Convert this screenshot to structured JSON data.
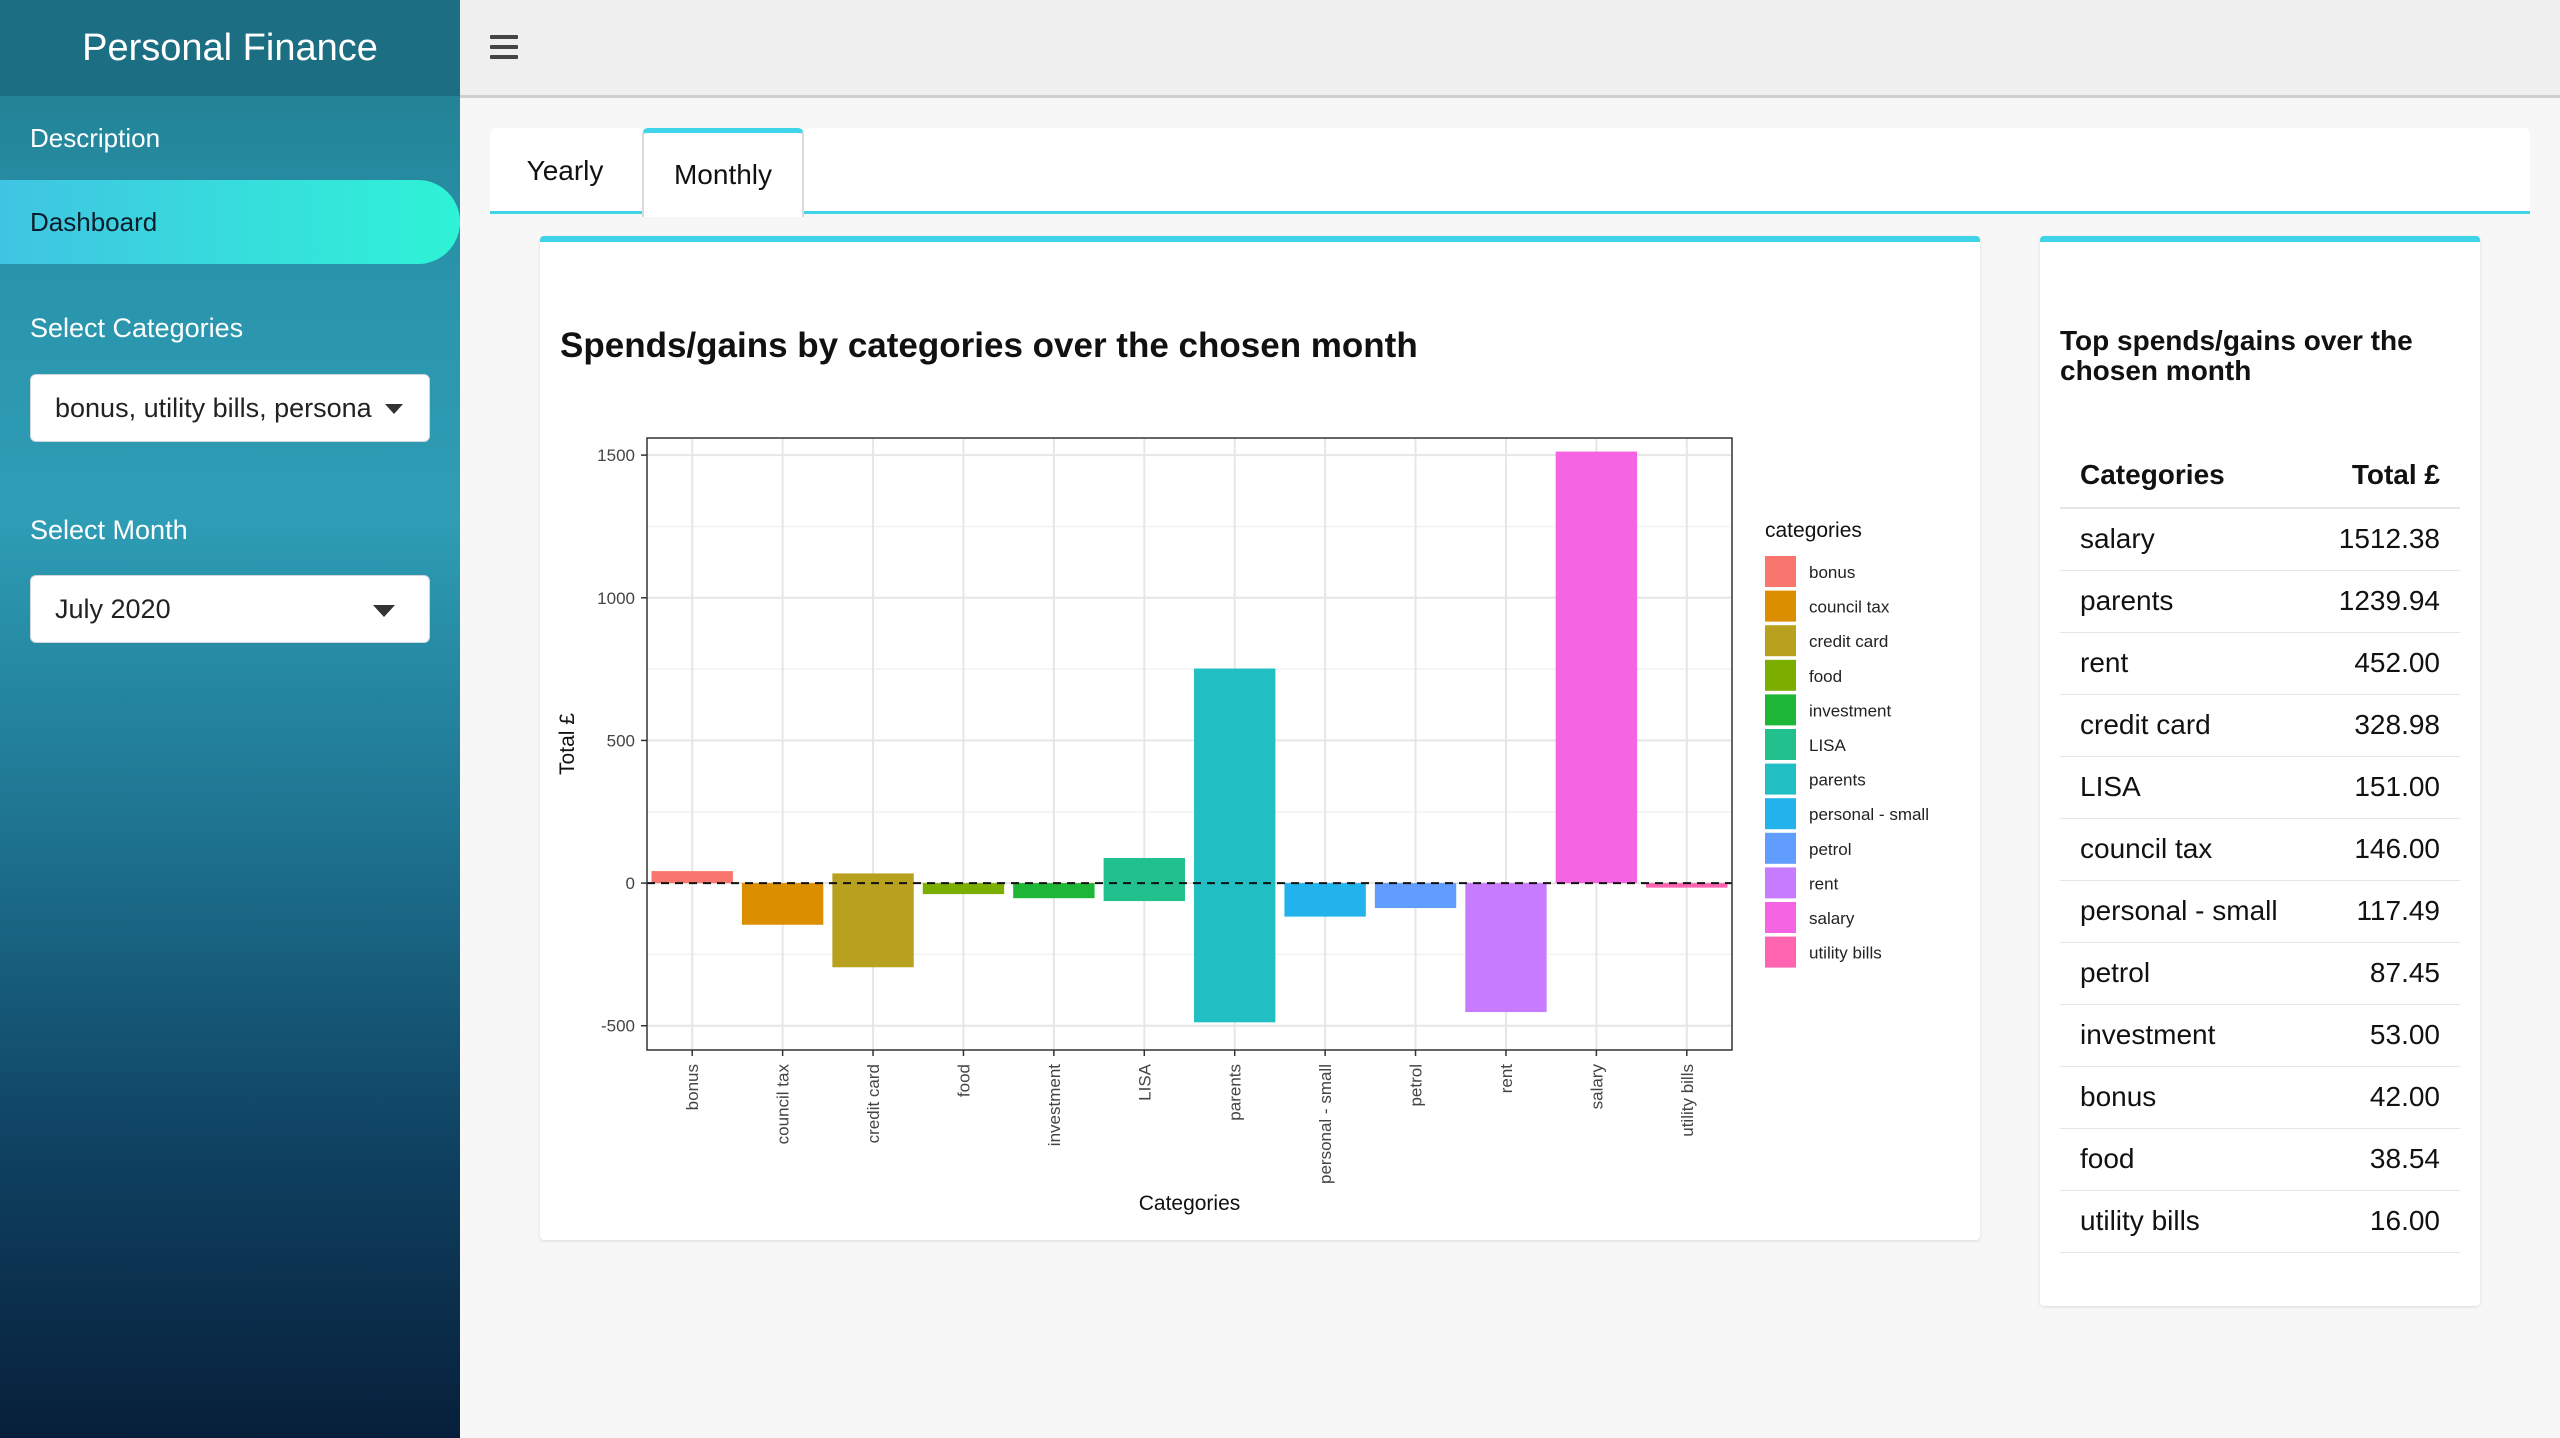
{
  "sidebar": {
    "brand": "Personal Finance",
    "nav": [
      {
        "label": "Description"
      },
      {
        "label": "Dashboard"
      }
    ],
    "select_categories_label": "Select Categories",
    "select_categories_value": "bonus, utility bills, persona",
    "select_month_label": "Select Month",
    "select_month_value": "July 2020"
  },
  "tabs": [
    {
      "label": "Yearly"
    },
    {
      "label": "Monthly"
    }
  ],
  "chart_title": "Spends/gains by categories over the chosen month",
  "table_card": {
    "title": "Top spends/gains over the chosen month",
    "headers": [
      "Categories",
      "Total £"
    ],
    "rows": [
      {
        "category": "salary",
        "total": "1512.38"
      },
      {
        "category": "parents",
        "total": "1239.94"
      },
      {
        "category": "rent",
        "total": "452.00"
      },
      {
        "category": "credit card",
        "total": "328.98"
      },
      {
        "category": "LISA",
        "total": "151.00"
      },
      {
        "category": "council tax",
        "total": "146.00"
      },
      {
        "category": "personal - small",
        "total": "117.49"
      },
      {
        "category": "petrol",
        "total": "87.45"
      },
      {
        "category": "investment",
        "total": "53.00"
      },
      {
        "category": "bonus",
        "total": "42.00"
      },
      {
        "category": "food",
        "total": "38.54"
      },
      {
        "category": "utility bills",
        "total": "16.00"
      }
    ]
  },
  "chart_data": {
    "type": "bar",
    "xlabel": "Categories",
    "ylabel": "Total £",
    "ylim": [
      -585,
      1560
    ],
    "yticks": [
      -500,
      0,
      500,
      1000,
      1500
    ],
    "grid": true,
    "legend_title": "categories",
    "legend_position": "right",
    "zero_line": "dashed",
    "categories": [
      "bonus",
      "council tax",
      "credit card",
      "food",
      "investment",
      "LISA",
      "parents",
      "personal - small",
      "petrol",
      "rent",
      "salary",
      "utility bills"
    ],
    "bars": [
      {
        "category": "bonus",
        "ymin": 0,
        "ymax": 42,
        "color": "#f8766d"
      },
      {
        "category": "council tax",
        "ymin": -146,
        "ymax": 0,
        "color": "#db8e00"
      },
      {
        "category": "credit card",
        "ymin": -295,
        "ymax": 34,
        "color": "#b8a11e"
      },
      {
        "category": "food",
        "ymin": -38.54,
        "ymax": 0,
        "color": "#7cae00"
      },
      {
        "category": "investment",
        "ymin": -53,
        "ymax": 0,
        "color": "#1eb636"
      },
      {
        "category": "LISA",
        "ymin": -63,
        "ymax": 88,
        "color": "#22c08c"
      },
      {
        "category": "parents",
        "ymin": -488,
        "ymax": 752,
        "color": "#21bfc4"
      },
      {
        "category": "personal - small",
        "ymin": -117.49,
        "ymax": 0,
        "color": "#22b2ec"
      },
      {
        "category": "petrol",
        "ymin": -87.45,
        "ymax": 0,
        "color": "#619cff"
      },
      {
        "category": "rent",
        "ymin": -452,
        "ymax": 0,
        "color": "#c77cff"
      },
      {
        "category": "salary",
        "ymin": 0,
        "ymax": 1512.38,
        "color": "#f564e3"
      },
      {
        "category": "utility bills",
        "ymin": -16,
        "ymax": 0,
        "color": "#ff64b0"
      }
    ]
  }
}
